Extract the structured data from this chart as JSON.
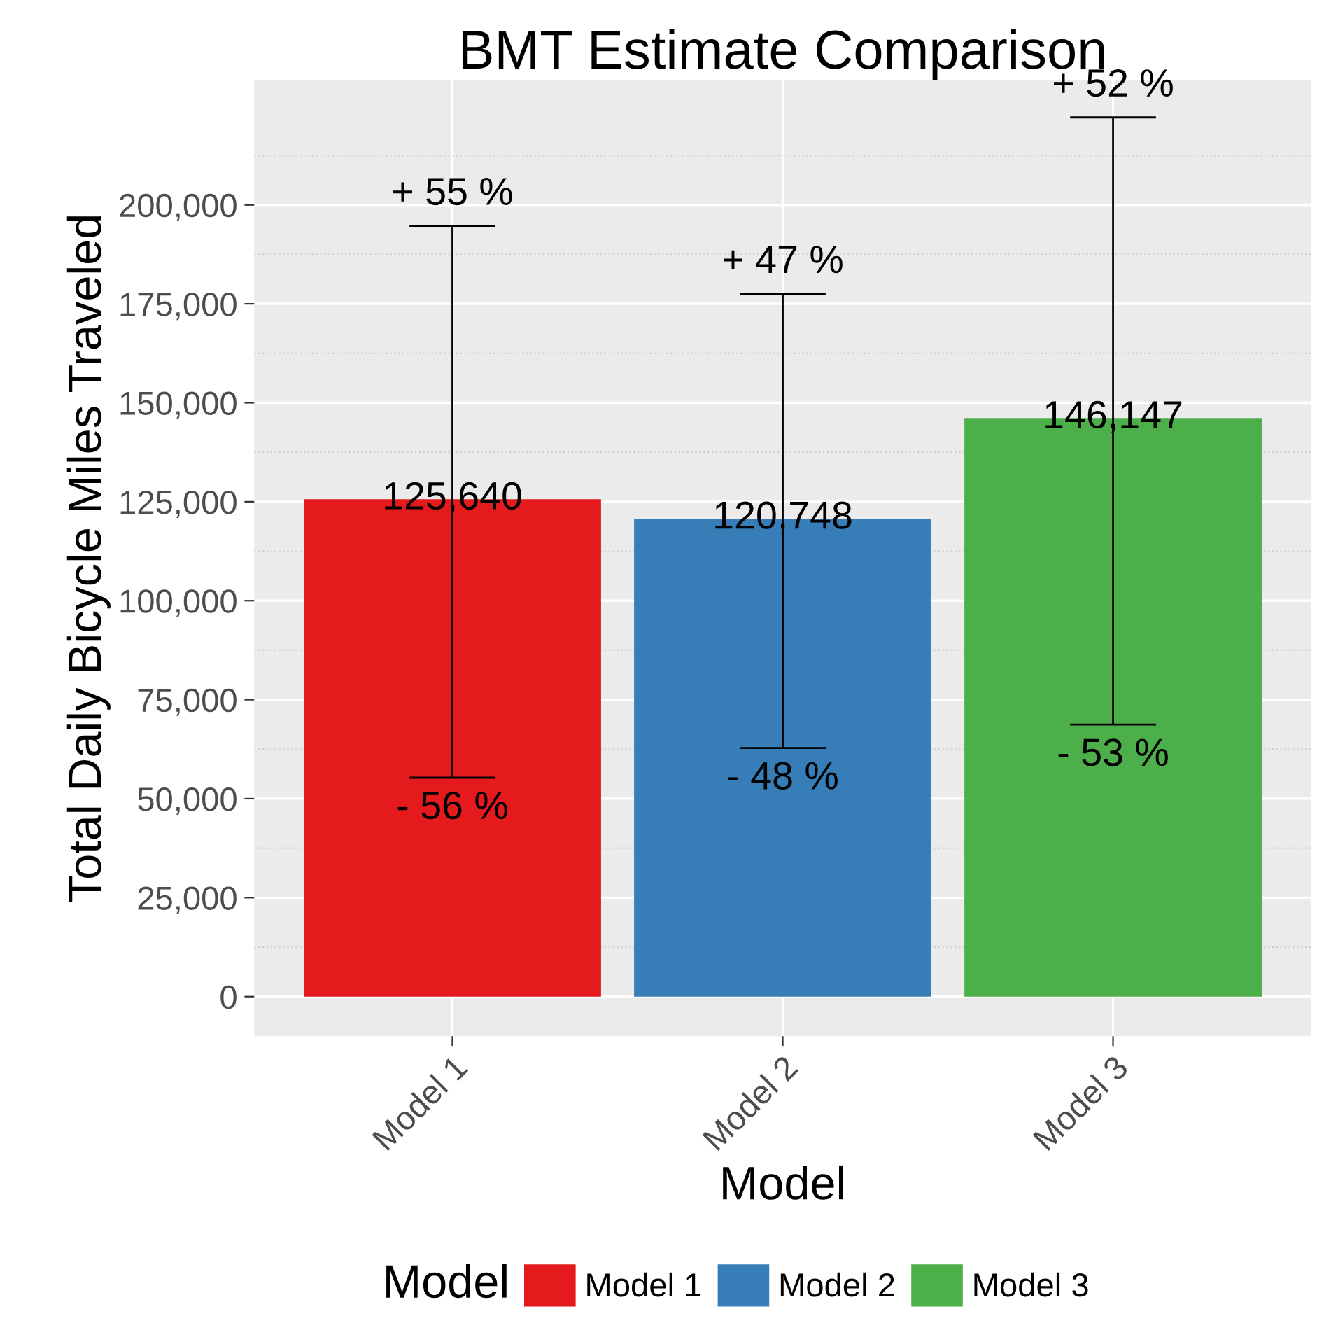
{
  "chart_data": {
    "type": "bar",
    "title": "BMT Estimate Comparison",
    "xlabel": "Model",
    "ylabel": "Total Daily Bicycle Miles Traveled",
    "legend_title": "Model",
    "categories": [
      "Model 1",
      "Model 2",
      "Model 3"
    ],
    "series": [
      {
        "name": "Model 1",
        "color": "#e41a1c",
        "values": [
          125640,
          null,
          null
        ],
        "value_labels": [
          "125,640",
          null,
          null
        ],
        "errors": [
          [
            55300,
            194700
          ],
          null,
          null
        ]
      },
      {
        "name": "Model 2",
        "color": "#377eb8",
        "values": [
          null,
          120748,
          null
        ],
        "value_labels": [
          null,
          "120,748",
          null
        ],
        "errors": [
          null,
          [
            62800,
            177500
          ],
          null
        ]
      },
      {
        "name": "Model 3",
        "color": "#4daf4a",
        "values": [
          null,
          null,
          146147
        ],
        "value_labels": [
          null,
          null,
          "146,147"
        ],
        "errors": [
          null,
          null,
          [
            68700,
            222100
          ]
        ]
      }
    ],
    "annotations": [
      "+ 55 %",
      "- 56 %",
      "+ 47 %",
      "- 48 %",
      "+ 52 %",
      "- 53 %"
    ],
    "ylim": [
      -10000,
      231500
    ],
    "yticks": [
      0,
      {
        "value": 25000,
        "label": "25,000"
      },
      {
        "value": 50000,
        "label": "50,000"
      },
      {
        "value": 75000,
        "label": "75,000"
      },
      {
        "value": 100000,
        "label": "100,000"
      },
      {
        "value": 125000,
        "label": "125,000"
      },
      {
        "value": 150000,
        "label": "150,000"
      },
      {
        "value": 175000,
        "label": "175,000"
      },
      {
        "value": 200000,
        "label": "200,000"
      }
    ],
    "grid": true,
    "legend": "bottom"
  }
}
